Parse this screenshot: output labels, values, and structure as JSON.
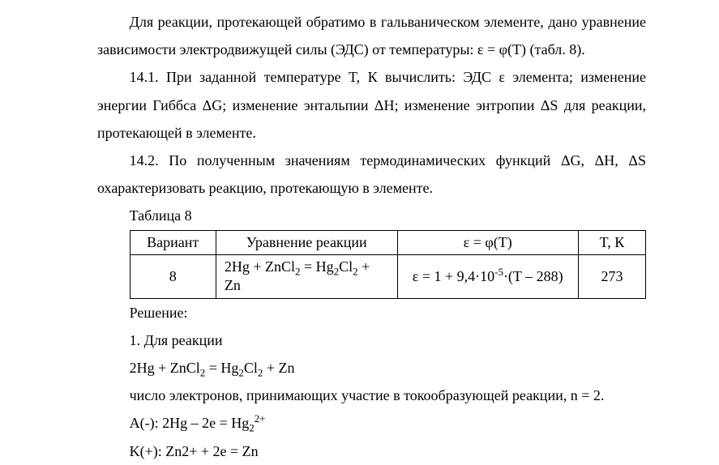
{
  "p1": "Для реакции, протекающей обратимо в гальваническом элементе, дано уравнение зависимости электродвижущей силы (ЭДС) от температуры: ε = φ(T) (табл. 8).",
  "p2": "14.1. При заданной температуре T, К вычислить: ЭДС ε элемента; изменение энергии Гиббса ΔG; изменение энтальпии ΔH; изменение энтропии ΔS для реакции, протекающей в элементе.",
  "p3": "14.2. По полученным значениям термодинамических функций ΔG, ΔH, ΔS охарактеризовать реакцию, протекающую в элементе.",
  "tableCaption": "Таблица 8",
  "table": {
    "columns": [
      "Вариант",
      "Уравнение реакции",
      "ε = φ(T)",
      "T, К"
    ],
    "row": {
      "variant": "8",
      "equation_html": "2Hg + ZnCl<sub>2</sub> = Hg<sub>2</sub>Cl<sub>2</sub> + Zn",
      "epsilon_html": "ε = 1 + 9,4·10<sup>-5</sup>·(T – 288)",
      "temp": "273"
    },
    "col_widths": [
      "90px",
      "230px",
      "230px",
      "70px"
    ],
    "border_color": "#000000"
  },
  "solutionLabel": "Решение:",
  "step1": "1. Для реакции",
  "eqLine_html": "2Hg + ZnCl<sub>2</sub> = Hg<sub>2</sub>Cl<sub>2</sub> + Zn",
  "step1b": "число электронов, принимающих участие в токообразующей реакции, n = 2.",
  "anode_html": "A(-): 2Hg – 2e = Hg<sub>2</sub><sup>2+</sup>",
  "cathode_html": "K(+): Zn2+ + 2e = Zn"
}
